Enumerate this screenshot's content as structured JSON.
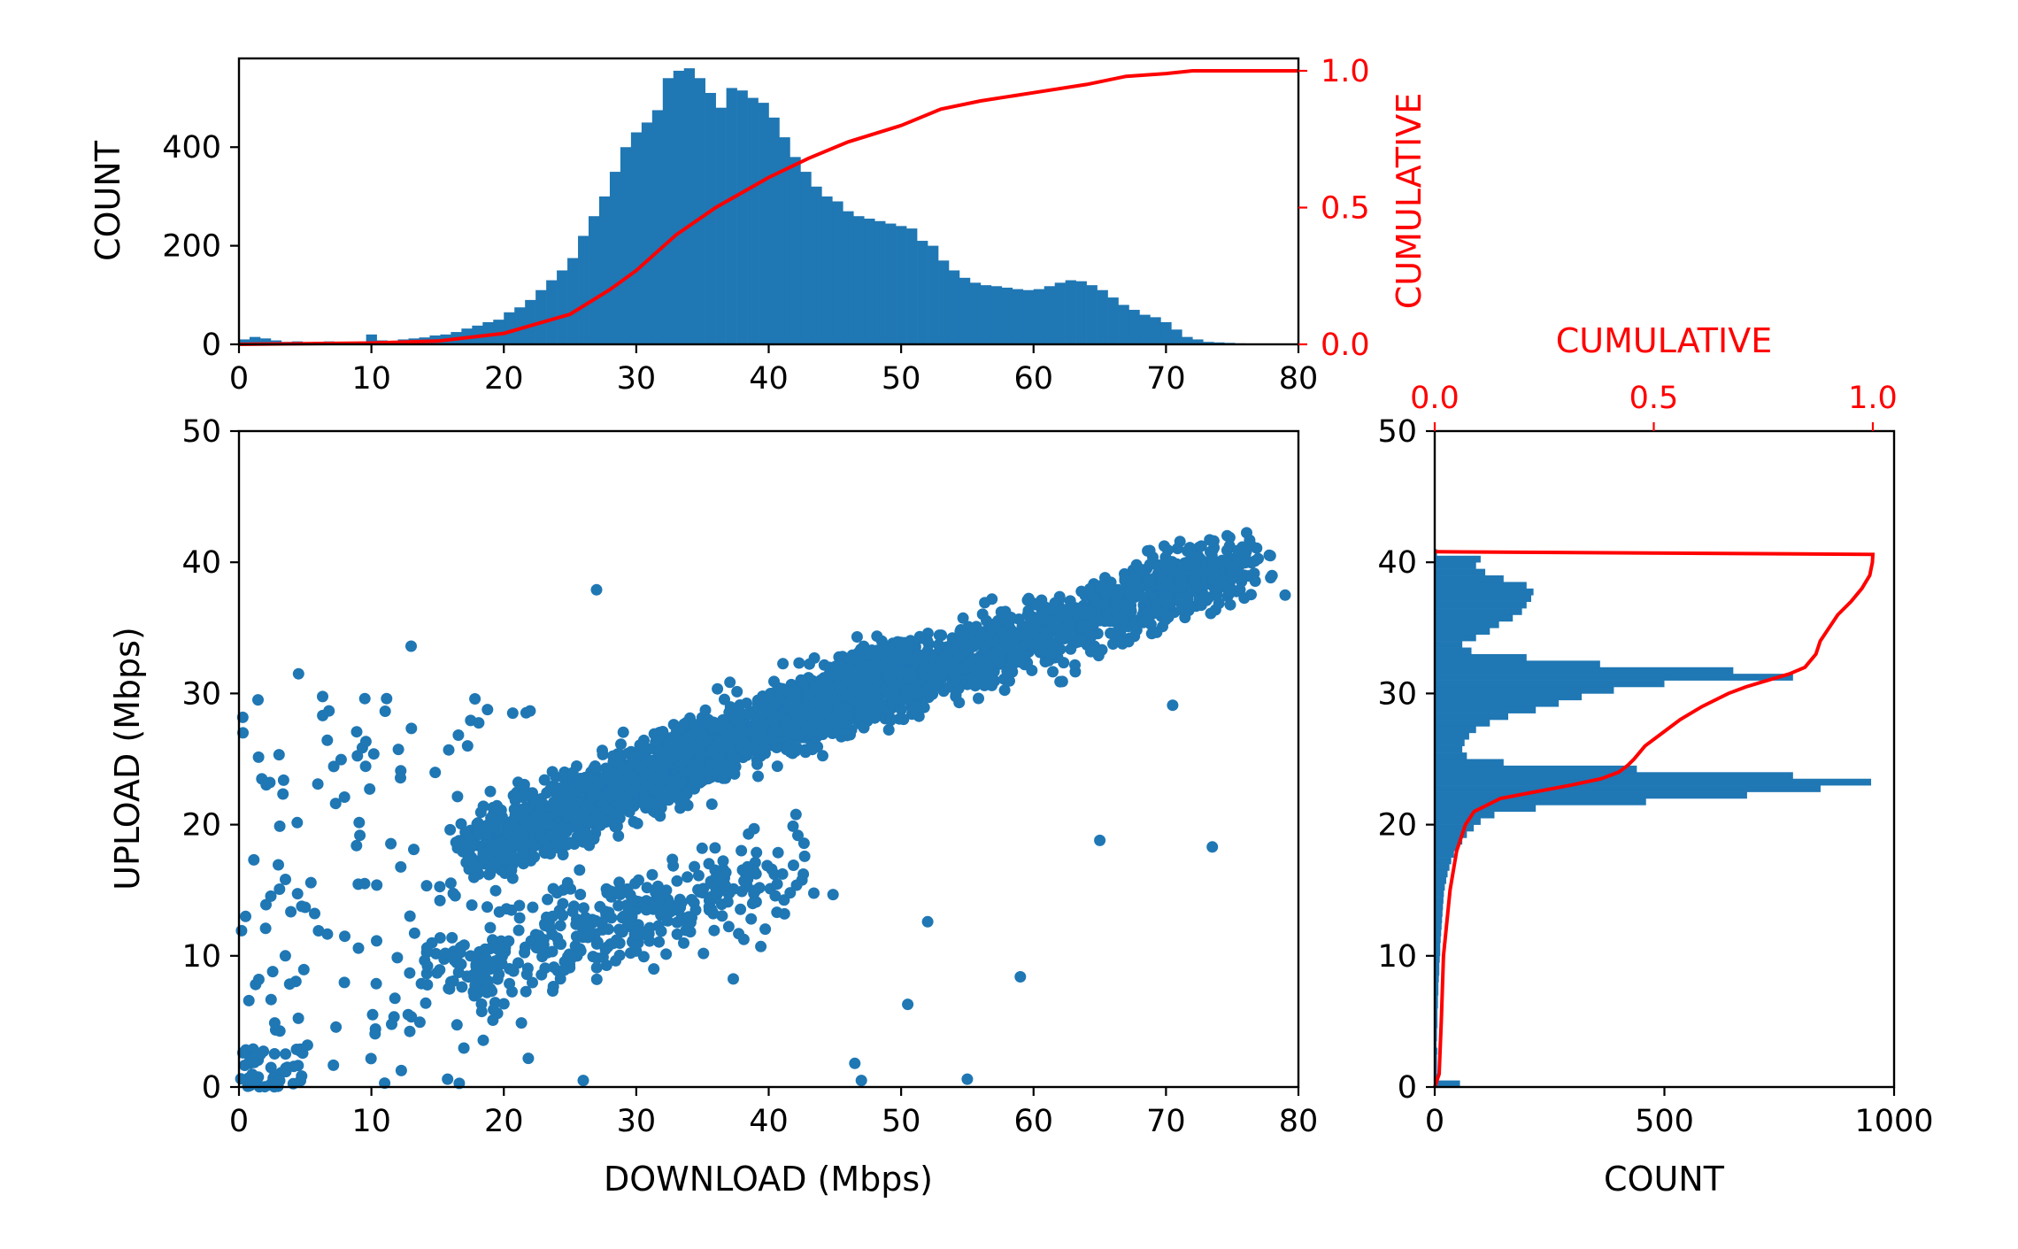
{
  "chart_data": [
    {
      "type": "scatter",
      "panel": "main",
      "xlabel": "DOWNLOAD (Mbps)",
      "ylabel": "UPLOAD (Mbps)",
      "xlim": [
        0,
        80
      ],
      "ylim": [
        0,
        50
      ],
      "xticks": [
        "0",
        "10",
        "20",
        "30",
        "40",
        "50",
        "60",
        "70",
        "80"
      ],
      "yticks": [
        "0",
        "10",
        "20",
        "30",
        "40",
        "50"
      ],
      "color": "#1f77b4",
      "clusters": [
        {
          "x_range": [
            18,
            50
          ],
          "y_range": [
            18,
            32
          ],
          "count": 1700,
          "weight": "dense"
        },
        {
          "x_range": [
            42,
            76
          ],
          "y_range": [
            28,
            40
          ],
          "count": 1300,
          "weight": "dense"
        },
        {
          "x_range": [
            15,
            42
          ],
          "y_range": [
            8,
            22
          ],
          "count": 380,
          "weight": "medium"
        },
        {
          "x_range": [
            0,
            22
          ],
          "y_range": [
            0,
            30
          ],
          "count": 140,
          "weight": "sparse"
        },
        {
          "x_range": [
            0,
            5
          ],
          "y_range": [
            0,
            3
          ],
          "count": 45,
          "weight": "corner"
        }
      ],
      "points": [
        {
          "x": 79,
          "y": 37.5
        },
        {
          "x": 76,
          "y": 40.6
        },
        {
          "x": 73.5,
          "y": 18.3
        },
        {
          "x": 65,
          "y": 18.8
        },
        {
          "x": 59,
          "y": 8.4
        },
        {
          "x": 55,
          "y": 0.6
        },
        {
          "x": 47,
          "y": 0.5
        },
        {
          "x": 46.5,
          "y": 1.8
        },
        {
          "x": 50.5,
          "y": 6.3
        },
        {
          "x": 27,
          "y": 37.9
        },
        {
          "x": 13,
          "y": 33.6
        },
        {
          "x": 4.5,
          "y": 31.5
        },
        {
          "x": 0.3,
          "y": 27
        },
        {
          "x": 0.5,
          "y": 13
        },
        {
          "x": 3.5,
          "y": 10
        },
        {
          "x": 1.5,
          "y": 8.2
        },
        {
          "x": 52,
          "y": 12.6
        },
        {
          "x": 70.5,
          "y": 29.1
        },
        {
          "x": 62,
          "y": 30.9
        },
        {
          "x": 26,
          "y": 0.5
        },
        {
          "x": 11,
          "y": 0.3
        }
      ]
    },
    {
      "type": "bar",
      "panel": "top-histogram",
      "ylabel": "COUNT",
      "secondary_ylabel": "CUMULATIVE",
      "xlim": [
        0,
        80
      ],
      "ylim": [
        0,
        580
      ],
      "secondary_ylim": [
        0,
        1.0
      ],
      "xticks": [
        "0",
        "10",
        "20",
        "30",
        "40",
        "50",
        "60",
        "70",
        "80"
      ],
      "yticks": [
        "0",
        "200",
        "400"
      ],
      "secondary_yticks": [
        "0.0",
        "0.5",
        "1.0"
      ],
      "bin_width": 0.8,
      "bins": [
        [
          0,
          10
        ],
        [
          0.8,
          15
        ],
        [
          1.6,
          12
        ],
        [
          2.4,
          8
        ],
        [
          3.2,
          5
        ],
        [
          4,
          6
        ],
        [
          4.8,
          4
        ],
        [
          5.6,
          5
        ],
        [
          6.4,
          6
        ],
        [
          7.2,
          5
        ],
        [
          8,
          4
        ],
        [
          8.8,
          5
        ],
        [
          9.6,
          20
        ],
        [
          10.4,
          8
        ],
        [
          11.2,
          6
        ],
        [
          12,
          10
        ],
        [
          12.8,
          12
        ],
        [
          13.6,
          14
        ],
        [
          14.4,
          18
        ],
        [
          15.2,
          20
        ],
        [
          16,
          25
        ],
        [
          16.8,
          32
        ],
        [
          17.6,
          38
        ],
        [
          18.4,
          45
        ],
        [
          19.2,
          50
        ],
        [
          20,
          65
        ],
        [
          20.8,
          75
        ],
        [
          21.6,
          90
        ],
        [
          22.4,
          110
        ],
        [
          23.2,
          130
        ],
        [
          24,
          150
        ],
        [
          24.8,
          175
        ],
        [
          25.6,
          220
        ],
        [
          26.4,
          260
        ],
        [
          27.2,
          300
        ],
        [
          28,
          350
        ],
        [
          28.8,
          400
        ],
        [
          29.6,
          430
        ],
        [
          30.4,
          450
        ],
        [
          31.2,
          475
        ],
        [
          32,
          540
        ],
        [
          32.8,
          555
        ],
        [
          33.6,
          560
        ],
        [
          34.4,
          540
        ],
        [
          35.2,
          510
        ],
        [
          36,
          480
        ],
        [
          36.8,
          520
        ],
        [
          37.6,
          515
        ],
        [
          38.4,
          500
        ],
        [
          39.2,
          490
        ],
        [
          40,
          460
        ],
        [
          40.8,
          420
        ],
        [
          41.6,
          380
        ],
        [
          42.4,
          350
        ],
        [
          43.2,
          320
        ],
        [
          44,
          300
        ],
        [
          44.8,
          290
        ],
        [
          45.6,
          270
        ],
        [
          46.4,
          260
        ],
        [
          47.2,
          255
        ],
        [
          48,
          250
        ],
        [
          48.8,
          245
        ],
        [
          49.6,
          240
        ],
        [
          50.4,
          235
        ],
        [
          51.2,
          210
        ],
        [
          52,
          200
        ],
        [
          52.8,
          170
        ],
        [
          53.6,
          150
        ],
        [
          54.4,
          135
        ],
        [
          55.2,
          125
        ],
        [
          56,
          120
        ],
        [
          56.8,
          118
        ],
        [
          57.6,
          115
        ],
        [
          58.4,
          112
        ],
        [
          59.2,
          110
        ],
        [
          60,
          112
        ],
        [
          60.8,
          118
        ],
        [
          61.6,
          125
        ],
        [
          62.4,
          130
        ],
        [
          63.2,
          128
        ],
        [
          64,
          120
        ],
        [
          64.8,
          110
        ],
        [
          65.6,
          95
        ],
        [
          66.4,
          80
        ],
        [
          67.2,
          70
        ],
        [
          68,
          60
        ],
        [
          68.8,
          55
        ],
        [
          69.6,
          45
        ],
        [
          70.4,
          30
        ],
        [
          71.2,
          15
        ],
        [
          72,
          10
        ],
        [
          72.8,
          5
        ],
        [
          73.6,
          4
        ],
        [
          74.4,
          3
        ],
        [
          75.2,
          2
        ],
        [
          76,
          1
        ]
      ],
      "cumulative": [
        [
          0,
          0.0
        ],
        [
          10,
          0.005
        ],
        [
          15,
          0.012
        ],
        [
          20,
          0.04
        ],
        [
          25,
          0.11
        ],
        [
          28,
          0.2
        ],
        [
          30,
          0.27
        ],
        [
          33,
          0.4
        ],
        [
          36,
          0.5
        ],
        [
          40,
          0.61
        ],
        [
          43,
          0.68
        ],
        [
          46,
          0.74
        ],
        [
          50,
          0.8
        ],
        [
          53,
          0.86
        ],
        [
          56,
          0.89
        ],
        [
          60,
          0.92
        ],
        [
          64,
          0.95
        ],
        [
          67,
          0.98
        ],
        [
          70,
          0.99
        ],
        [
          72,
          1.0
        ],
        [
          80,
          1.0
        ]
      ],
      "cumulative_color": "#ff0000"
    },
    {
      "type": "bar",
      "panel": "right-histogram",
      "orientation": "horizontal",
      "xlabel": "COUNT",
      "secondary_xlabel": "CUMULATIVE",
      "xlim": [
        0,
        1000
      ],
      "ylim": [
        0,
        50
      ],
      "secondary_xlim": [
        0,
        1.0
      ],
      "xticks": [
        "0",
        "500",
        "1000"
      ],
      "yticks": [
        "0",
        "10",
        "20",
        "30",
        "40",
        "50"
      ],
      "secondary_xticks": [
        "0.0",
        "0.5",
        "1.0"
      ],
      "bin_height": 0.5,
      "bins": [
        [
          0,
          55
        ],
        [
          0.5,
          8
        ],
        [
          1,
          5
        ],
        [
          1.5,
          5
        ],
        [
          2,
          5
        ],
        [
          2.5,
          6
        ],
        [
          3,
          4
        ],
        [
          3.5,
          5
        ],
        [
          4,
          5
        ],
        [
          4.5,
          6
        ],
        [
          5,
          6
        ],
        [
          5.5,
          6
        ],
        [
          6,
          7
        ],
        [
          6.5,
          7
        ],
        [
          7,
          8
        ],
        [
          7.5,
          8
        ],
        [
          8,
          9
        ],
        [
          8.5,
          10
        ],
        [
          9,
          10
        ],
        [
          9.5,
          11
        ],
        [
          10,
          12
        ],
        [
          10.5,
          12
        ],
        [
          11,
          13
        ],
        [
          11.5,
          14
        ],
        [
          12,
          15
        ],
        [
          12.5,
          16
        ],
        [
          13,
          17
        ],
        [
          13.5,
          18
        ],
        [
          14,
          19
        ],
        [
          14.5,
          20
        ],
        [
          15,
          22
        ],
        [
          15.5,
          25
        ],
        [
          16,
          28
        ],
        [
          16.5,
          32
        ],
        [
          17,
          36
        ],
        [
          17.5,
          42
        ],
        [
          18,
          50
        ],
        [
          18.5,
          60
        ],
        [
          19,
          70
        ],
        [
          19.5,
          85
        ],
        [
          20,
          100
        ],
        [
          20.5,
          130
        ],
        [
          21,
          220
        ],
        [
          21.5,
          460
        ],
        [
          22,
          680
        ],
        [
          22.5,
          840
        ],
        [
          23,
          950
        ],
        [
          23.5,
          780
        ],
        [
          24,
          440
        ],
        [
          24.5,
          150
        ],
        [
          25,
          70
        ],
        [
          25.5,
          60
        ],
        [
          26,
          65
        ],
        [
          26.5,
          75
        ],
        [
          27,
          90
        ],
        [
          27.5,
          120
        ],
        [
          28,
          160
        ],
        [
          28.5,
          220
        ],
        [
          29,
          270
        ],
        [
          29.5,
          320
        ],
        [
          30,
          390
        ],
        [
          30.5,
          500
        ],
        [
          31,
          780
        ],
        [
          31.5,
          650
        ],
        [
          32,
          360
        ],
        [
          32.5,
          200
        ],
        [
          33,
          80
        ],
        [
          33.5,
          60
        ],
        [
          34,
          90
        ],
        [
          34.5,
          120
        ],
        [
          35,
          140
        ],
        [
          35.5,
          170
        ],
        [
          36,
          190
        ],
        [
          36.5,
          200
        ],
        [
          37,
          210
        ],
        [
          37.5,
          215
        ],
        [
          38,
          200
        ],
        [
          38.5,
          150
        ],
        [
          39,
          110
        ],
        [
          39.5,
          90
        ],
        [
          40,
          100
        ],
        [
          40.5,
          5
        ]
      ],
      "cumulative": [
        [
          0,
          0.0
        ],
        [
          1,
          0.01
        ],
        [
          5,
          0.015
        ],
        [
          10,
          0.02
        ],
        [
          15,
          0.035
        ],
        [
          18,
          0.05
        ],
        [
          20,
          0.07
        ],
        [
          21,
          0.09
        ],
        [
          22,
          0.15
        ],
        [
          22.5,
          0.23
        ],
        [
          23,
          0.31
        ],
        [
          23.5,
          0.38
        ],
        [
          24,
          0.42
        ],
        [
          24.5,
          0.44
        ],
        [
          25,
          0.455
        ],
        [
          26,
          0.48
        ],
        [
          27,
          0.52
        ],
        [
          28,
          0.56
        ],
        [
          29,
          0.61
        ],
        [
          30,
          0.67
        ],
        [
          30.5,
          0.71
        ],
        [
          31,
          0.76
        ],
        [
          31.5,
          0.81
        ],
        [
          32,
          0.845
        ],
        [
          33,
          0.87
        ],
        [
          34,
          0.88
        ],
        [
          35,
          0.9
        ],
        [
          36,
          0.92
        ],
        [
          37,
          0.95
        ],
        [
          38,
          0.975
        ],
        [
          39,
          0.993
        ],
        [
          40,
          0.999
        ],
        [
          40.6,
          1.0
        ],
        [
          40.8,
          0.0
        ]
      ],
      "cumulative_color": "#ff0000"
    }
  ]
}
